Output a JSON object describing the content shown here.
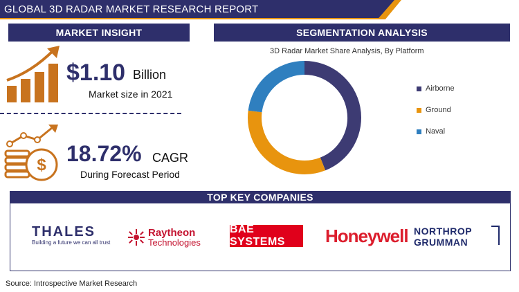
{
  "header": {
    "title": "GLOBAL 3D RADAR MARKET RESEARCH REPORT"
  },
  "market_insight": {
    "title": "MARKET INSIGHT",
    "size_value": "$1.10",
    "size_unit": "Billion",
    "size_label": "Market size in 2021",
    "cagr_value": "18.72%",
    "cagr_unit": "CAGR",
    "cagr_label": "During Forecast Period"
  },
  "segmentation": {
    "title": "SEGMENTATION ANALYSIS"
  },
  "chart_data": {
    "type": "pie",
    "title": "3D Radar Market Share Analysis, By Platform",
    "donut": true,
    "categories": [
      "Airborne",
      "Ground",
      "Naval"
    ],
    "values": [
      44,
      33,
      23
    ],
    "colors": [
      "#3d3b73",
      "#e8940e",
      "#2f7fbf"
    ],
    "legend_position": "right"
  },
  "companies": {
    "title": "TOP KEY COMPANIES",
    "thales": {
      "name": "THALES",
      "tagline": "Building a future we can all trust"
    },
    "raytheon": {
      "line1": "Raytheon",
      "line2": "Technologies"
    },
    "bae": {
      "name": "BAE SYSTEMS"
    },
    "honeywell": {
      "name": "Honeywell"
    },
    "northrop": {
      "line1": "NORTHROP",
      "line2": "GRUMMAN"
    }
  },
  "source": "Source: Introspective Market Research"
}
